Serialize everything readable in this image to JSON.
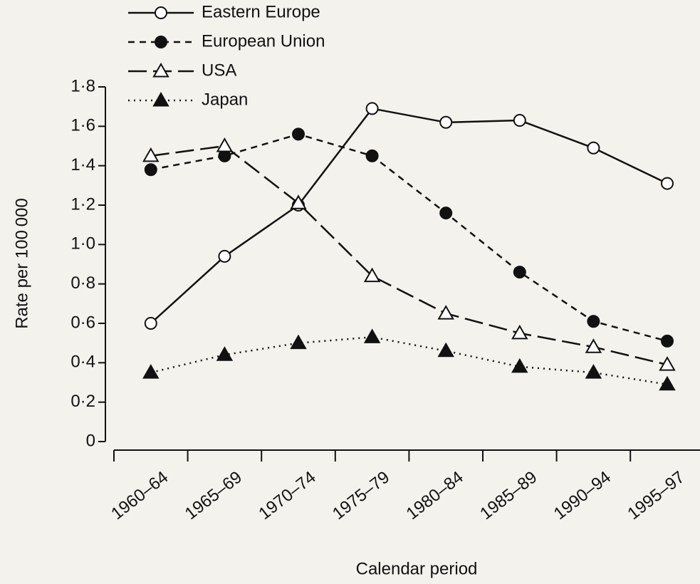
{
  "chart_data": {
    "type": "line",
    "y_label": "Rate per 100 000",
    "x_label": "Calendar period",
    "categories": [
      "1960–64",
      "1965–69",
      "1970–74",
      "1975–79",
      "1980–84",
      "1985–89",
      "1990–94",
      "1995–97"
    ],
    "ylim": [
      0,
      1.8
    ],
    "yticks": [
      0,
      {
        "value": 0.2,
        "label": "0·2"
      },
      {
        "value": 0.4,
        "label": "0·4"
      },
      {
        "value": 0.6,
        "label": "0·6"
      },
      {
        "value": 0.8,
        "label": "0·8"
      },
      {
        "value": 1.0,
        "label": "1·0"
      },
      {
        "value": 1.2,
        "label": "1·2"
      },
      {
        "value": 1.4,
        "label": "1·4"
      },
      {
        "value": 1.6,
        "label": "1·6"
      },
      {
        "value": 1.8,
        "label": "1·8"
      }
    ],
    "legend": "upper left",
    "series": [
      {
        "name": "Eastern Europe",
        "color": "#111111",
        "line_style": "solid",
        "marker": "open-circle",
        "values": [
          0.6,
          0.94,
          1.2,
          1.69,
          1.62,
          1.63,
          1.49,
          1.31
        ]
      },
      {
        "name": "European Union",
        "color": "#111111",
        "line_style": "dashed",
        "marker": "filled-circle",
        "values": [
          1.38,
          1.45,
          1.56,
          1.45,
          1.16,
          0.86,
          0.61,
          0.51
        ]
      },
      {
        "name": "USA",
        "color": "#111111",
        "line_style": "long-dashed",
        "marker": "open-triangle",
        "values": [
          1.45,
          1.5,
          1.21,
          0.84,
          0.65,
          0.55,
          0.48,
          0.39
        ]
      },
      {
        "name": "Japan",
        "color": "#111111",
        "line_style": "dotted",
        "marker": "filled-triangle",
        "values": [
          0.35,
          0.44,
          0.5,
          0.53,
          0.46,
          0.38,
          0.35,
          0.29
        ]
      }
    ]
  }
}
